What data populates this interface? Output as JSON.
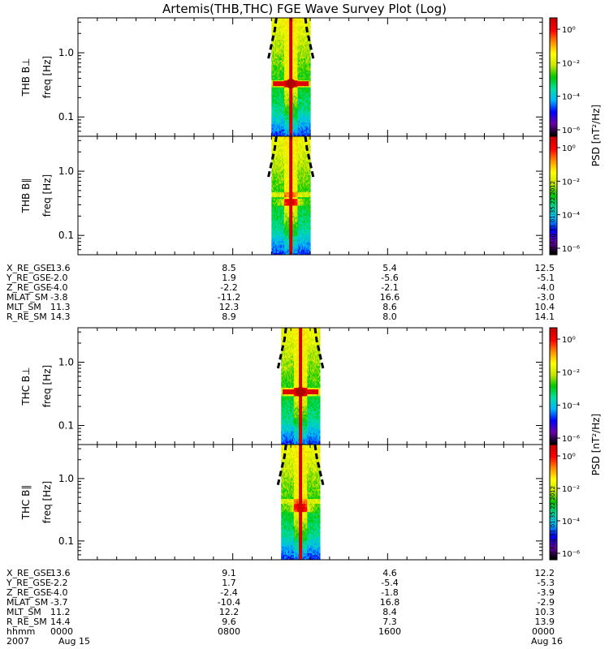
{
  "title": "Artemis(THB,THC) FGE Wave Survey Plot (Log)",
  "colorbar": {
    "label": "PSD [nT²/Hz]",
    "ticks": [
      "10⁰",
      "10⁻²",
      "10⁻⁴",
      "10⁻⁶"
    ],
    "stamp": "Fri Aug 31 01:35:22 2012",
    "colors": [
      "#000000",
      "#6a00a8",
      "#0000ff",
      "#00b4ff",
      "#00e0a0",
      "#00c800",
      "#c8e600",
      "#ffff00",
      "#ff8c00",
      "#ff0000",
      "#c80000"
    ]
  },
  "chart_data": [
    {
      "type": "heatmap",
      "label": "THB B⊥",
      "ylabel": "freq [Hz]",
      "scale": "log",
      "ylim": [
        0.05,
        3.5
      ],
      "yticks": [
        {
          "v": 1.0,
          "t": "1.0"
        },
        {
          "v": 0.1,
          "t": "0.1"
        }
      ],
      "xlim_hours": [
        0,
        24
      ],
      "data_window_hours": [
        10.0,
        12.0
      ],
      "peak_freq_hz": 0.33,
      "peak_time_hours": 11.0
    },
    {
      "type": "heatmap",
      "label": "THB B∥",
      "ylabel": "freq [Hz]",
      "scale": "log",
      "ylim": [
        0.05,
        3.5
      ],
      "yticks": [
        {
          "v": 1.0,
          "t": "1.0"
        },
        {
          "v": 0.1,
          "t": "0.1"
        }
      ],
      "xlim_hours": [
        0,
        24
      ],
      "data_window_hours": [
        10.0,
        12.0
      ],
      "peak_freq_hz": 0.33,
      "peak_time_hours": 11.0
    },
    {
      "type": "heatmap",
      "label": "THC B⊥",
      "ylabel": "freq [Hz]",
      "scale": "log",
      "ylim": [
        0.05,
        3.5
      ],
      "yticks": [
        {
          "v": 1.0,
          "t": "1.0"
        },
        {
          "v": 0.1,
          "t": "0.1"
        }
      ],
      "xlim_hours": [
        0,
        24
      ],
      "data_window_hours": [
        10.5,
        12.5
      ],
      "peak_freq_hz": 0.34,
      "peak_time_hours": 11.5
    },
    {
      "type": "heatmap",
      "label": "THC B∥",
      "ylabel": "freq [Hz]",
      "scale": "log",
      "ylim": [
        0.05,
        3.5
      ],
      "yticks": [
        {
          "v": 1.0,
          "t": "1.0"
        },
        {
          "v": 0.1,
          "t": "0.1"
        }
      ],
      "xlim_hours": [
        0,
        24
      ],
      "data_window_hours": [
        10.5,
        12.5
      ],
      "peak_freq_hz": 0.34,
      "peak_time_hours": 11.5
    }
  ],
  "ephemeris_thb": {
    "rows": [
      {
        "name": "X_RE_GSE",
        "values": [
          "13.6",
          "8.5",
          "5.4",
          "12.5"
        ]
      },
      {
        "name": "Y_RE_GSE",
        "values": [
          "-2.0",
          "1.9",
          "-5.6",
          "-5.1"
        ]
      },
      {
        "name": "Z_RE_GSE",
        "values": [
          "-4.0",
          "-2.2",
          "-2.1",
          "-4.0"
        ]
      },
      {
        "name": "MLAT_SM",
        "values": [
          "-3.8",
          "-11.2",
          "16.6",
          "-3.0"
        ]
      },
      {
        "name": "MLT_SM",
        "values": [
          "11.3",
          "12.3",
          "8.6",
          "10.4"
        ]
      },
      {
        "name": "R_RE_SM",
        "values": [
          "14.3",
          "8.9",
          "8.0",
          "14.1"
        ]
      }
    ]
  },
  "ephemeris_thc": {
    "rows": [
      {
        "name": "X_RE_GSE",
        "values": [
          "13.6",
          "9.1",
          "4.6",
          "12.2"
        ]
      },
      {
        "name": "Y_RE_GSE",
        "values": [
          "-2.2",
          "1.7",
          "-5.4",
          "-5.3"
        ]
      },
      {
        "name": "Z_RE_GSE",
        "values": [
          "-4.0",
          "-2.4",
          "-1.8",
          "-3.9"
        ]
      },
      {
        "name": "MLAT_SM",
        "values": [
          "-3.7",
          "-10.4",
          "16.8",
          "-2.9"
        ]
      },
      {
        "name": "MLT_SM",
        "values": [
          "11.2",
          "12.2",
          "8.4",
          "10.3"
        ]
      },
      {
        "name": "R_RE_SM",
        "values": [
          "14.4",
          "9.6",
          "7.3",
          "13.9"
        ]
      },
      {
        "name": "hhmm",
        "values": [
          "0000",
          "0800",
          "1600",
          "0000"
        ]
      }
    ]
  },
  "date_row": {
    "year": "2007",
    "start": "Aug 15",
    "end": "Aug 16"
  }
}
